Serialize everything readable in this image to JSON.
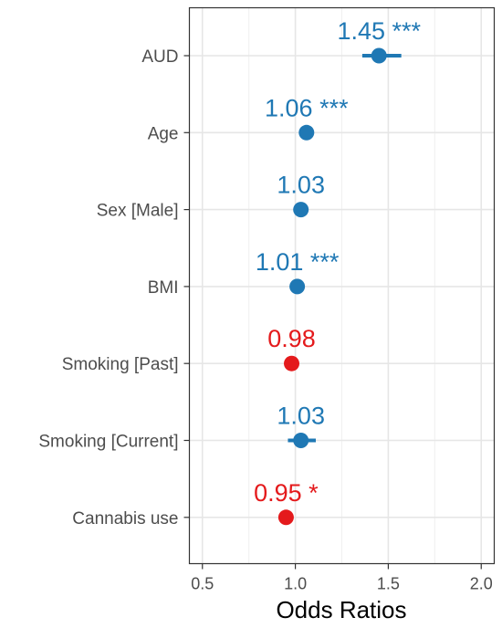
{
  "chart_data": {
    "type": "forest",
    "xlabel": "Odds Ratios",
    "xlim": [
      0.43,
      2.07
    ],
    "x_ticks": [
      "0.5",
      "1.0",
      "1.5",
      "2.0"
    ],
    "grid": true,
    "colors": {
      "positive": "#1f78b4",
      "negative": "#e41a1c"
    },
    "rows": [
      {
        "label": "AUD",
        "or": 1.45,
        "ci_low": 1.36,
        "ci_high": 1.57,
        "text": "1.45 ***",
        "direction": "positive"
      },
      {
        "label": "Age",
        "or": 1.06,
        "ci_low": 1.05,
        "ci_high": 1.07,
        "text": "1.06 ***",
        "direction": "positive"
      },
      {
        "label": "Sex [Male]",
        "or": 1.03,
        "ci_low": 1.0,
        "ci_high": 1.06,
        "text": "1.03",
        "direction": "positive"
      },
      {
        "label": "BMI",
        "or": 1.01,
        "ci_low": 1.0,
        "ci_high": 1.02,
        "text": "1.01 ***",
        "direction": "positive"
      },
      {
        "label": "Smoking [Past]",
        "or": 0.98,
        "ci_low": 0.95,
        "ci_high": 1.01,
        "text": "0.98",
        "direction": "negative"
      },
      {
        "label": "Smoking [Current]",
        "or": 1.03,
        "ci_low": 0.96,
        "ci_high": 1.11,
        "text": "1.03",
        "direction": "positive"
      },
      {
        "label": "Cannabis use",
        "or": 0.95,
        "ci_low": 0.91,
        "ci_high": 0.99,
        "text": "0.95 *",
        "direction": "negative"
      }
    ]
  }
}
